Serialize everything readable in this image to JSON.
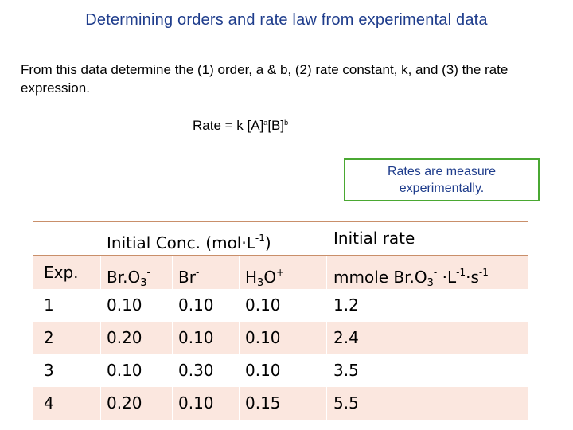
{
  "title": "Determining orders and rate law from experimental data",
  "intro": "From this data determine the (1) order, a & b, (2) rate constant, k, and (3) the rate expression.",
  "rate_equation": {
    "prefix": "Rate = k [A]",
    "exp_a": "a",
    "mid": "[B]",
    "exp_b": "b"
  },
  "note": "Rates are measure experimentally.",
  "table": {
    "group_header": {
      "conc_base": "Initial Conc. (mol·L",
      "conc_sup": "-1",
      "conc_close": ")",
      "rate": "Initial rate"
    },
    "columns": {
      "exp": "Exp.",
      "bro3_base": "Br.O",
      "bro3_sub": "3",
      "bro3_sup": "-",
      "br_base": "Br",
      "br_sup": "-",
      "h3o_h": "H",
      "h3o_sub": "3",
      "h3o_o": "O",
      "h3o_sup": "+",
      "rate_base": "mmole Br.O",
      "rate_sub": "3",
      "rate_sup1": "-",
      "rate_mid": " ·L",
      "rate_sup2": "-1",
      "rate_s": "·s",
      "rate_sup3": "-1"
    },
    "rows": [
      {
        "exp": "1",
        "bro3": "0.10",
        "br": "0.10",
        "h3o": "0.10",
        "rate": "1.2"
      },
      {
        "exp": "2",
        "bro3": "0.20",
        "br": "0.10",
        "h3o": "0.10",
        "rate": "2.4"
      },
      {
        "exp": "3",
        "bro3": "0.10",
        "br": "0.30",
        "h3o": "0.10",
        "rate": "3.5"
      },
      {
        "exp": "4",
        "bro3": "0.20",
        "br": "0.10",
        "h3o": "0.15",
        "rate": "5.5"
      }
    ]
  }
}
